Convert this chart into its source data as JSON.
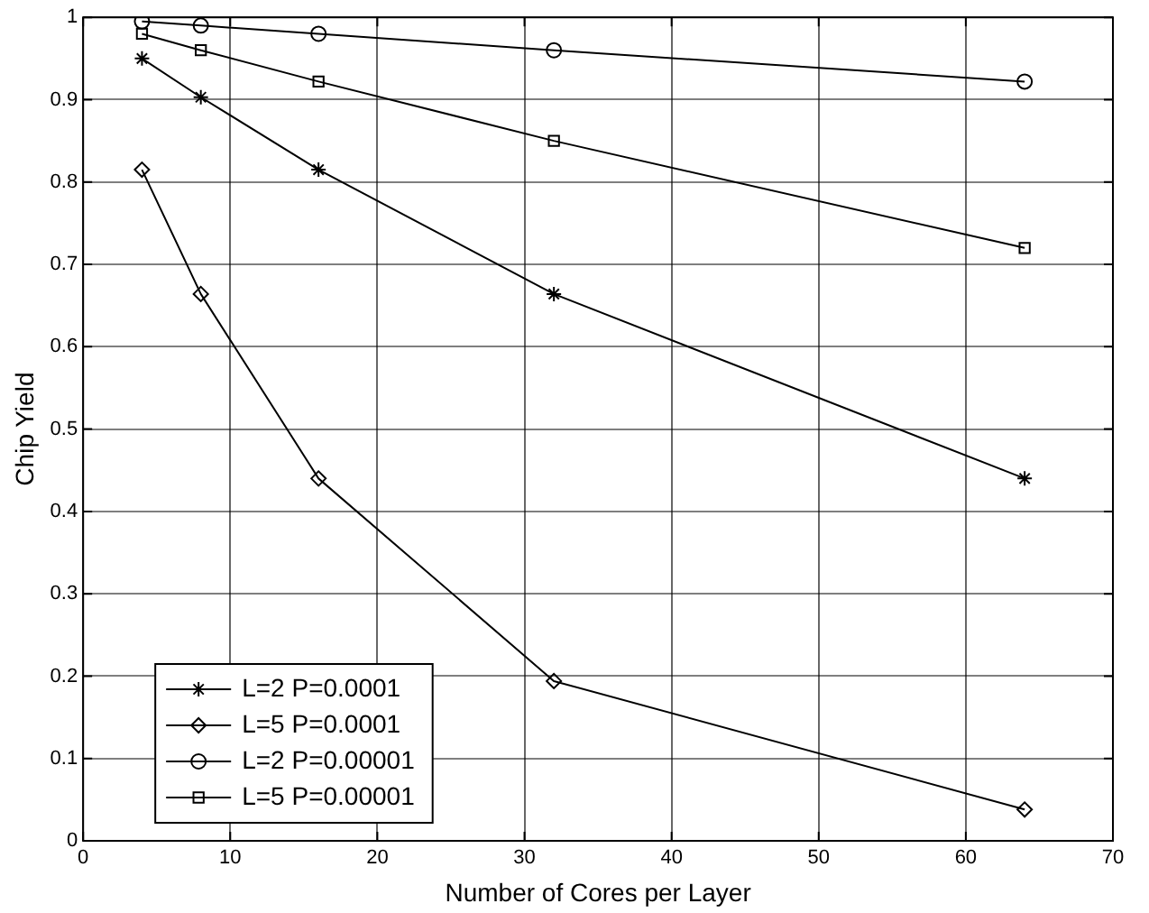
{
  "chart_data": {
    "type": "line",
    "xlabel": "Number of Cores per Layer",
    "ylabel": "Chip Yield",
    "x": [
      4,
      8,
      16,
      32,
      64
    ],
    "series": [
      {
        "name": "L=2 P=0.0001",
        "color": "#000000",
        "marker": "cross",
        "values": [
          0.95,
          0.903,
          0.815,
          0.664,
          0.44
        ]
      },
      {
        "name": "L=5 P=0.0001",
        "color": "#000000",
        "marker": "diamond",
        "values": [
          0.815,
          0.664,
          0.44,
          0.194,
          0.038
        ]
      },
      {
        "name": "L=2 P=0.00001",
        "color": "#000000",
        "marker": "circle",
        "values": [
          0.995,
          0.99,
          0.98,
          0.96,
          0.922
        ]
      },
      {
        "name": "L=5 P=0.00001",
        "color": "#000000",
        "marker": "square",
        "values": [
          0.98,
          0.96,
          0.922,
          0.85,
          0.72
        ]
      }
    ],
    "xlim": [
      0,
      70
    ],
    "xticks": [
      0,
      10,
      20,
      30,
      40,
      50,
      60,
      70
    ],
    "ylim": [
      0,
      1
    ],
    "yticks": [
      0,
      0.1,
      0.2,
      0.3,
      0.4,
      0.5,
      0.6,
      0.7,
      0.8,
      0.9,
      1
    ],
    "grid": true,
    "legend": "bottom left",
    "line_style": "solid"
  }
}
